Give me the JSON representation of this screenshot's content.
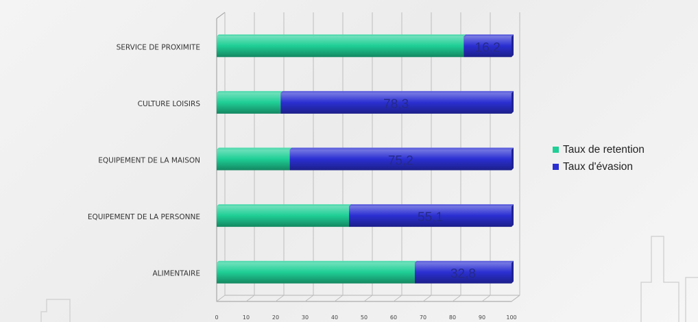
{
  "chart_data": {
    "type": "bar",
    "orientation": "horizontal",
    "stacked": true,
    "categories": [
      "SERVICE DE PROXIMITE",
      "CULTURE LOISIRS",
      "EQUIPEMENT DE LA MAISON",
      "EQUIPEMENT DE LA PERSONNE",
      "ALIMENTAIRE"
    ],
    "series": [
      {
        "name": "Taux de retention",
        "values": [
          83.8,
          21.7,
          24.8,
          44.9,
          67.2
        ],
        "color": "#1fcf95"
      },
      {
        "name": "Taux d'évasion",
        "values": [
          16.2,
          78.3,
          75.2,
          55.1,
          32.8
        ],
        "color": "#2b2fd2"
      }
    ],
    "data_labels": [
      "16,2",
      "78,3",
      "75,2",
      "55,1",
      "32,8"
    ],
    "x_ticks": [
      "0",
      "10",
      "20",
      "30",
      "40",
      "50",
      "60",
      "70",
      "80",
      "90",
      "100"
    ],
    "xlim": [
      0,
      100
    ],
    "grid": true,
    "legend_position": "right"
  }
}
